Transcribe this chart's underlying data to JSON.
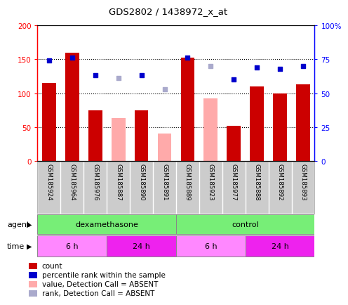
{
  "title": "GDS2802 / 1438972_x_at",
  "samples": [
    "GSM185924",
    "GSM185964",
    "GSM185976",
    "GSM185887",
    "GSM185890",
    "GSM185891",
    "GSM185889",
    "GSM185923",
    "GSM185977",
    "GSM185888",
    "GSM185892",
    "GSM185893"
  ],
  "bar_values": [
    115,
    160,
    75,
    null,
    75,
    null,
    152,
    null,
    52,
    110,
    100,
    113
  ],
  "bar_absent_values": [
    null,
    null,
    null,
    63,
    null,
    40,
    null,
    92,
    null,
    null,
    null,
    null
  ],
  "rank_values": [
    74,
    76,
    63,
    null,
    63,
    null,
    76,
    null,
    60,
    69,
    68,
    70
  ],
  "rank_absent_values": [
    null,
    null,
    null,
    61,
    null,
    53,
    null,
    70,
    null,
    null,
    null,
    null
  ],
  "bar_color": "#cc0000",
  "bar_absent_color": "#ffaaaa",
  "rank_color": "#0000cc",
  "rank_absent_color": "#aaaacc",
  "ylim_left": [
    0,
    200
  ],
  "ylim_right": [
    0,
    100
  ],
  "yticks_left": [
    0,
    50,
    100,
    150,
    200
  ],
  "ytick_labels_left": [
    "0",
    "50",
    "100",
    "150",
    "200"
  ],
  "yticks_right": [
    0,
    25,
    50,
    75,
    100
  ],
  "ytick_labels_right": [
    "0",
    "25",
    "50",
    "75",
    "100%"
  ],
  "agent_groups": [
    {
      "label": "dexamethasone",
      "start": 0,
      "end": 6,
      "color": "#77ee77"
    },
    {
      "label": "control",
      "start": 6,
      "end": 12,
      "color": "#77ee77"
    }
  ],
  "time_groups": [
    {
      "label": "6 h",
      "start": 0,
      "end": 3,
      "color": "#ff88ff"
    },
    {
      "label": "24 h",
      "start": 3,
      "end": 6,
      "color": "#ee22ee"
    },
    {
      "label": "6 h",
      "start": 6,
      "end": 9,
      "color": "#ff88ff"
    },
    {
      "label": "24 h",
      "start": 9,
      "end": 12,
      "color": "#ee22ee"
    }
  ],
  "bg_color": "#ffffff",
  "sample_bg_color": "#cccccc",
  "agent_label": "agent",
  "time_label": "time",
  "legend_items": [
    {
      "label": "count",
      "color": "#cc0000"
    },
    {
      "label": "percentile rank within the sample",
      "color": "#0000cc"
    },
    {
      "label": "value, Detection Call = ABSENT",
      "color": "#ffaaaa"
    },
    {
      "label": "rank, Detection Call = ABSENT",
      "color": "#aaaacc"
    }
  ]
}
